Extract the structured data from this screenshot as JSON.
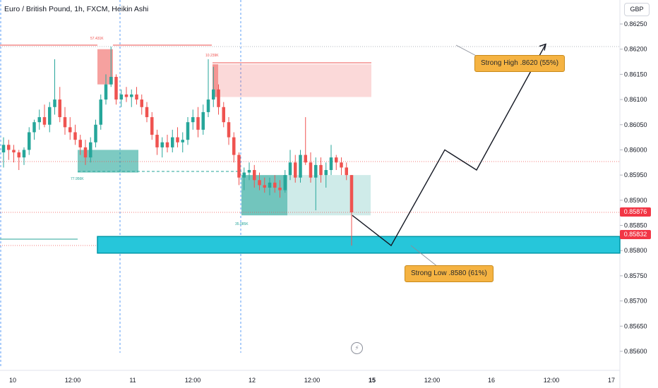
{
  "header": {
    "title": "Euro / British Pound, 1h, FXCM, Heikin Ashi",
    "currency": "GBP"
  },
  "price_tags": {
    "last": "0.85876",
    "zone": "0.85832"
  },
  "callouts": {
    "high": "Strong High .8620 (55%)",
    "low": "Strong Low .8580 (61%)"
  },
  "volume_labels": {
    "a": "57.431K",
    "b": "10.239K",
    "c": "77.956K",
    "d": "35.085K"
  },
  "colors": {
    "bull": "#26a69a",
    "bear": "#ef5350",
    "zone_cyan": "#26c6da",
    "callout": "#f5b342",
    "price_tag": "#f23645"
  },
  "chart_data": {
    "type": "candlestick",
    "title": "Euro / British Pound, 1h, FXCM, Heikin Ashi",
    "y_axis": {
      "side": "right",
      "unit": "GBP",
      "ylim": [
        0.85575,
        0.86275
      ],
      "ticks": [
        "0.86250",
        "0.86200",
        "0.86150",
        "0.86100",
        "0.86050",
        "0.86000",
        "0.85950",
        "0.85900",
        "0.85850",
        "0.85800",
        "0.85750",
        "0.85700",
        "0.85650",
        "0.85600"
      ]
    },
    "x_axis": {
      "ticks": [
        "10",
        "12:00",
        "11",
        "12:00",
        "12",
        "12:00",
        "15",
        "12:00",
        "16",
        "12:00",
        "17"
      ],
      "tick_bold": [
        "15"
      ]
    },
    "candles": [
      {
        "o": 0.85995,
        "h": 0.86025,
        "l": 0.85965,
        "c": 0.8601
      },
      {
        "o": 0.8601,
        "h": 0.8602,
        "l": 0.8598,
        "c": 0.86
      },
      {
        "o": 0.86,
        "h": 0.8601,
        "l": 0.85975,
        "c": 0.85995
      },
      {
        "o": 0.85995,
        "h": 0.86,
        "l": 0.8596,
        "c": 0.85985
      },
      {
        "o": 0.85985,
        "h": 0.86005,
        "l": 0.8597,
        "c": 0.86
      },
      {
        "o": 0.86,
        "h": 0.86045,
        "l": 0.8599,
        "c": 0.86035
      },
      {
        "o": 0.86035,
        "h": 0.8606,
        "l": 0.8602,
        "c": 0.86055
      },
      {
        "o": 0.86055,
        "h": 0.8608,
        "l": 0.8604,
        "c": 0.86065
      },
      {
        "o": 0.86065,
        "h": 0.8609,
        "l": 0.86045,
        "c": 0.8605
      },
      {
        "o": 0.8605,
        "h": 0.86095,
        "l": 0.86035,
        "c": 0.86085
      },
      {
        "o": 0.86085,
        "h": 0.8618,
        "l": 0.8607,
        "c": 0.861
      },
      {
        "o": 0.861,
        "h": 0.86125,
        "l": 0.86055,
        "c": 0.86065
      },
      {
        "o": 0.86065,
        "h": 0.86085,
        "l": 0.8603,
        "c": 0.86045
      },
      {
        "o": 0.86045,
        "h": 0.86065,
        "l": 0.8602,
        "c": 0.86035
      },
      {
        "o": 0.86035,
        "h": 0.8605,
        "l": 0.8601,
        "c": 0.8602
      },
      {
        "o": 0.8602,
        "h": 0.8603,
        "l": 0.8599,
        "c": 0.86005
      },
      {
        "o": 0.86005,
        "h": 0.8602,
        "l": 0.8597,
        "c": 0.85985
      },
      {
        "o": 0.85985,
        "h": 0.86025,
        "l": 0.85975,
        "c": 0.86015
      },
      {
        "o": 0.86015,
        "h": 0.8606,
        "l": 0.86005,
        "c": 0.8605
      },
      {
        "o": 0.8605,
        "h": 0.8611,
        "l": 0.8604,
        "c": 0.861
      },
      {
        "o": 0.861,
        "h": 0.8615,
        "l": 0.8609,
        "c": 0.8613
      },
      {
        "o": 0.8613,
        "h": 0.86205,
        "l": 0.86125,
        "c": 0.86145
      },
      {
        "o": 0.86145,
        "h": 0.8615,
        "l": 0.8609,
        "c": 0.861
      },
      {
        "o": 0.861,
        "h": 0.8612,
        "l": 0.86085,
        "c": 0.8611
      },
      {
        "o": 0.8611,
        "h": 0.86125,
        "l": 0.86095,
        "c": 0.86105
      },
      {
        "o": 0.86105,
        "h": 0.8612,
        "l": 0.86085,
        "c": 0.8611
      },
      {
        "o": 0.8611,
        "h": 0.86125,
        "l": 0.8609,
        "c": 0.861
      },
      {
        "o": 0.861,
        "h": 0.8611,
        "l": 0.8607,
        "c": 0.86085
      },
      {
        "o": 0.86085,
        "h": 0.86095,
        "l": 0.86055,
        "c": 0.86065
      },
      {
        "o": 0.86065,
        "h": 0.86075,
        "l": 0.8602,
        "c": 0.8603
      },
      {
        "o": 0.8603,
        "h": 0.8604,
        "l": 0.8599,
        "c": 0.86005
      },
      {
        "o": 0.86005,
        "h": 0.86025,
        "l": 0.85985,
        "c": 0.86015
      },
      {
        "o": 0.86015,
        "h": 0.8603,
        "l": 0.85995,
        "c": 0.86005
      },
      {
        "o": 0.86005,
        "h": 0.8604,
        "l": 0.85995,
        "c": 0.86025
      },
      {
        "o": 0.86025,
        "h": 0.86045,
        "l": 0.86005,
        "c": 0.86015
      },
      {
        "o": 0.86015,
        "h": 0.86035,
        "l": 0.85995,
        "c": 0.8602
      },
      {
        "o": 0.8602,
        "h": 0.86065,
        "l": 0.8601,
        "c": 0.86055
      },
      {
        "o": 0.86055,
        "h": 0.8608,
        "l": 0.8604,
        "c": 0.86065
      },
      {
        "o": 0.86065,
        "h": 0.86085,
        "l": 0.86025,
        "c": 0.8604
      },
      {
        "o": 0.8604,
        "h": 0.8609,
        "l": 0.8603,
        "c": 0.86075
      },
      {
        "o": 0.86075,
        "h": 0.8618,
        "l": 0.86065,
        "c": 0.861
      },
      {
        "o": 0.861,
        "h": 0.86165,
        "l": 0.86085,
        "c": 0.8612
      },
      {
        "o": 0.8612,
        "h": 0.8613,
        "l": 0.8607,
        "c": 0.86085
      },
      {
        "o": 0.86085,
        "h": 0.86095,
        "l": 0.86045,
        "c": 0.86055
      },
      {
        "o": 0.86055,
        "h": 0.86065,
        "l": 0.8601,
        "c": 0.86025
      },
      {
        "o": 0.86025,
        "h": 0.86035,
        "l": 0.85975,
        "c": 0.8599
      },
      {
        "o": 0.8599,
        "h": 0.85995,
        "l": 0.8593,
        "c": 0.85945
      },
      {
        "o": 0.85945,
        "h": 0.85965,
        "l": 0.8592,
        "c": 0.85955
      },
      {
        "o": 0.85955,
        "h": 0.85975,
        "l": 0.8594,
        "c": 0.8596
      },
      {
        "o": 0.8596,
        "h": 0.8597,
        "l": 0.85925,
        "c": 0.8594
      },
      {
        "o": 0.8594,
        "h": 0.85955,
        "l": 0.8592,
        "c": 0.8593
      },
      {
        "o": 0.8593,
        "h": 0.85945,
        "l": 0.85915,
        "c": 0.85925
      },
      {
        "o": 0.85925,
        "h": 0.85945,
        "l": 0.8591,
        "c": 0.85935
      },
      {
        "o": 0.85935,
        "h": 0.8595,
        "l": 0.85915,
        "c": 0.85925
      },
      {
        "o": 0.85925,
        "h": 0.8594,
        "l": 0.85905,
        "c": 0.8592
      },
      {
        "o": 0.8592,
        "h": 0.8596,
        "l": 0.85915,
        "c": 0.8595
      },
      {
        "o": 0.8595,
        "h": 0.86,
        "l": 0.8594,
        "c": 0.85975
      },
      {
        "o": 0.85975,
        "h": 0.8599,
        "l": 0.85935,
        "c": 0.85945
      },
      {
        "o": 0.85945,
        "h": 0.86,
        "l": 0.85935,
        "c": 0.8599
      },
      {
        "o": 0.8599,
        "h": 0.86065,
        "l": 0.8597,
        "c": 0.85975
      },
      {
        "o": 0.85975,
        "h": 0.85995,
        "l": 0.85935,
        "c": 0.85945
      },
      {
        "o": 0.85945,
        "h": 0.85985,
        "l": 0.8588,
        "c": 0.8597
      },
      {
        "o": 0.8597,
        "h": 0.85985,
        "l": 0.85935,
        "c": 0.8595
      },
      {
        "o": 0.8595,
        "h": 0.85975,
        "l": 0.85925,
        "c": 0.8596
      },
      {
        "o": 0.8596,
        "h": 0.8601,
        "l": 0.8595,
        "c": 0.85985
      },
      {
        "o": 0.85985,
        "h": 0.8599,
        "l": 0.8596,
        "c": 0.85975
      },
      {
        "o": 0.85975,
        "h": 0.85985,
        "l": 0.8595,
        "c": 0.85965
      },
      {
        "o": 0.85965,
        "h": 0.85975,
        "l": 0.8594,
        "c": 0.8595
      },
      {
        "o": 0.8595,
        "h": 0.8595,
        "l": 0.8581,
        "c": 0.85876
      }
    ],
    "zones": [
      {
        "kind": "supply",
        "from": 0.8613,
        "to": 0.862,
        "color": "#ef5350"
      },
      {
        "kind": "supply",
        "from": 0.86105,
        "to": 0.8617,
        "color": "#ef5350"
      },
      {
        "kind": "demand",
        "from": 0.85955,
        "to": 0.86,
        "color": "#26a69a"
      },
      {
        "kind": "demand",
        "from": 0.8587,
        "to": 0.8595,
        "color": "#26a69a"
      },
      {
        "kind": "strong-low-zone",
        "from": 0.85795,
        "to": 0.85828,
        "color": "#26c6da"
      }
    ],
    "levels": [
      0.86205,
      0.85965,
      0.85876,
      0.85815
    ],
    "projection_path": [
      0.8587,
      0.8581,
      0.86,
      0.8596,
      0.8621
    ],
    "annotations": [
      "Strong High .8620 (55%)",
      "Strong Low .8580 (61%)"
    ]
  }
}
